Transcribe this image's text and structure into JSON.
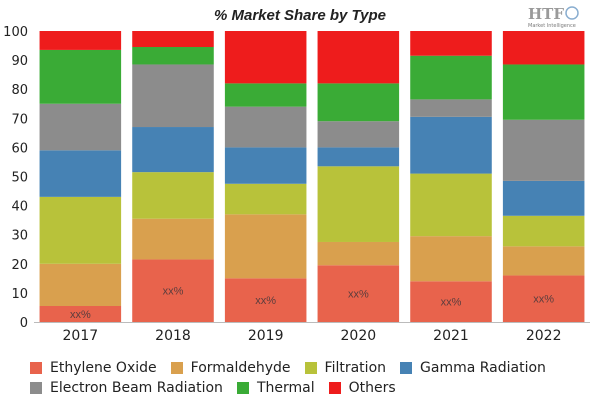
{
  "chart_data": {
    "type": "bar",
    "stacked": true,
    "title": "% Market Share by Type",
    "categories": [
      "2017",
      "2018",
      "2019",
      "2020",
      "2021",
      "2022"
    ],
    "ylim": [
      0,
      100
    ],
    "yticks": [
      0,
      10,
      20,
      30,
      40,
      50,
      60,
      70,
      80,
      90,
      100
    ],
    "grid": false,
    "legend_position": "bottom",
    "data_label": "xx%",
    "series": [
      {
        "name": "Ethylene Oxide",
        "color": "#e8634c",
        "values": [
          5.5,
          21.5,
          15,
          19.5,
          14,
          16
        ]
      },
      {
        "name": "Formaldehyde",
        "color": "#d9a04e",
        "values": [
          14.5,
          14,
          22,
          8,
          15.5,
          10
        ]
      },
      {
        "name": "Filtration",
        "color": "#b8c23a",
        "values": [
          23,
          16,
          10.5,
          26,
          21.5,
          10.5
        ]
      },
      {
        "name": "Gamma Radiation",
        "color": "#4682b4",
        "values": [
          16,
          15.5,
          12.5,
          6.5,
          19.5,
          12
        ]
      },
      {
        "name": "Electron Beam Radiation",
        "color": "#8c8c8c",
        "values": [
          16,
          21.5,
          14,
          9,
          6,
          21
        ]
      },
      {
        "name": "Thermal",
        "color": "#3aab36",
        "values": [
          18.5,
          6,
          8,
          13,
          15,
          19
        ]
      },
      {
        "name": "Others",
        "color": "#ee1c1c",
        "values": [
          6.5,
          5.5,
          18,
          18,
          8.5,
          11.5
        ]
      }
    ]
  },
  "legend": {
    "row1": [
      "Ethylene Oxide",
      "Formaldehyde",
      "Filtration",
      "Gamma Radiation"
    ],
    "row2": [
      "Electron Beam Radiation",
      "Thermal",
      "Others"
    ]
  },
  "logo": {
    "text": "HTF",
    "subtext": "Market Intelligence"
  }
}
